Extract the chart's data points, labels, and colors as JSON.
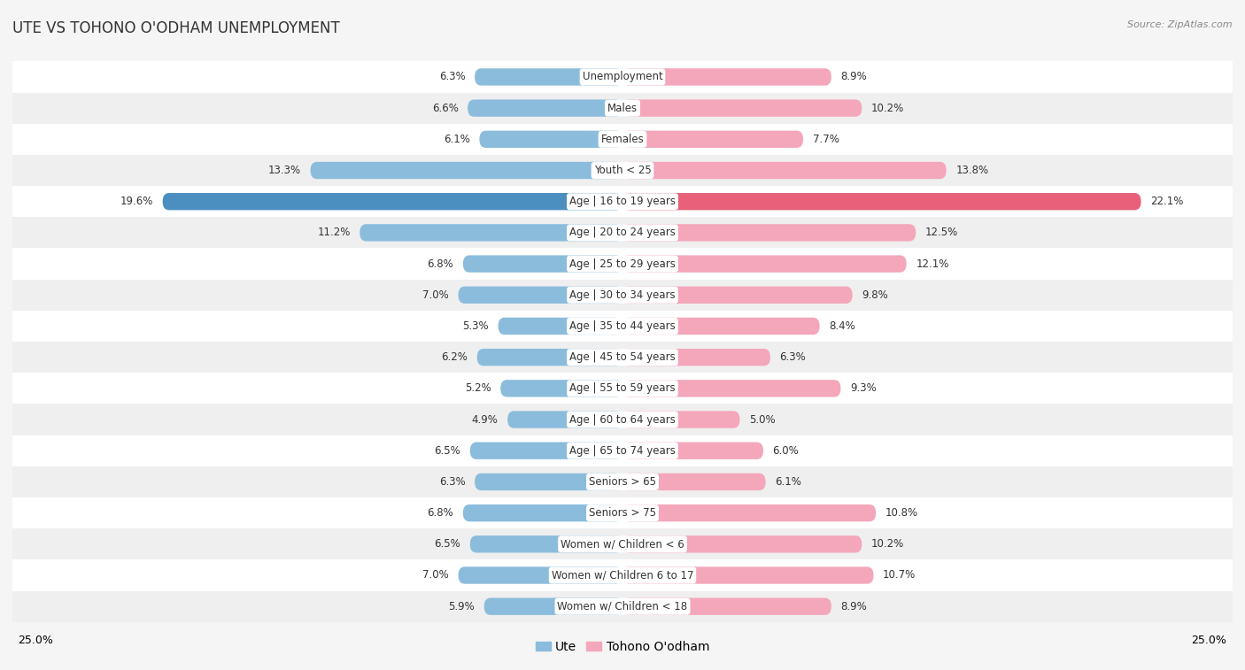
{
  "title": "Ute vs Tohono O’odham Unemployment",
  "title_display": "UTE VS TOHONO O'ODHAM UNEMPLOYMENT",
  "source": "Source: ZipAtlas.com",
  "categories": [
    "Unemployment",
    "Males",
    "Females",
    "Youth < 25",
    "Age | 16 to 19 years",
    "Age | 20 to 24 years",
    "Age | 25 to 29 years",
    "Age | 30 to 34 years",
    "Age | 35 to 44 years",
    "Age | 45 to 54 years",
    "Age | 55 to 59 years",
    "Age | 60 to 64 years",
    "Age | 65 to 74 years",
    "Seniors > 65",
    "Seniors > 75",
    "Women w/ Children < 6",
    "Women w/ Children 6 to 17",
    "Women w/ Children < 18"
  ],
  "ute_values": [
    6.3,
    6.6,
    6.1,
    13.3,
    19.6,
    11.2,
    6.8,
    7.0,
    5.3,
    6.2,
    5.2,
    4.9,
    6.5,
    6.3,
    6.8,
    6.5,
    7.0,
    5.9
  ],
  "tohono_values": [
    8.9,
    10.2,
    7.7,
    13.8,
    22.1,
    12.5,
    12.1,
    9.8,
    8.4,
    6.3,
    9.3,
    5.0,
    6.0,
    6.1,
    10.8,
    10.2,
    10.7,
    8.9
  ],
  "ute_color": "#8bbcdc",
  "tohono_color": "#f4a6bb",
  "ute_highlight_color": "#4a8fc0",
  "tohono_highlight_color": "#e8607a",
  "highlight_row": 4,
  "xlim": 25.0,
  "row_bg_white": "#ffffff",
  "row_bg_gray": "#efefef",
  "bar_height": 0.55,
  "title_fontsize": 12,
  "label_fontsize": 8.5,
  "value_fontsize": 8.5,
  "legend_fontsize": 10,
  "fig_bg": "#f5f5f5"
}
